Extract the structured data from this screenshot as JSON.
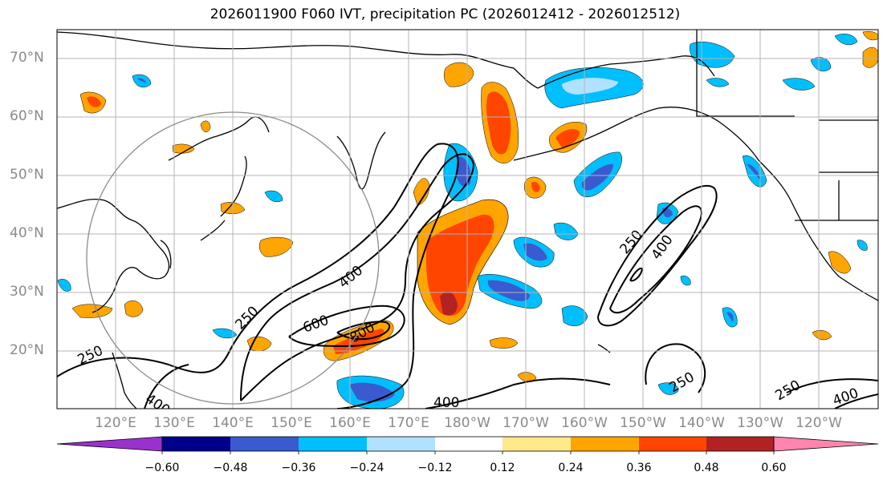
{
  "title": "2026011900 F060 IVT, precipitation PC (2026012412 - 2026012512)",
  "lat_labels": [
    "70°N",
    "60°N",
    "50°N",
    "40°N",
    "30°N",
    "20°N"
  ],
  "lon_labels": [
    "120°E",
    "130°E",
    "140°E",
    "150°E",
    "160°E",
    "170°E",
    "180°W",
    "170°W",
    "160°W",
    "150°W",
    "140°W",
    "130°W",
    "120°W"
  ],
  "contour_labels": [
    "250",
    "400",
    "600",
    "800",
    "250",
    "400",
    "250",
    "400",
    "250",
    "400",
    "250",
    "400"
  ],
  "colorbar": {
    "tick_labels": [
      "−0.60",
      "−0.48",
      "−0.36",
      "−0.24",
      "−0.12",
      "0.12",
      "0.24",
      "0.36",
      "0.48",
      "0.60"
    ],
    "colors": [
      "#9932cc",
      "#00008b",
      "#3a5bcf",
      "#00bfff",
      "#b0e2ff",
      "#ffffff",
      "#ffe98a",
      "#ffa500",
      "#ff4500",
      "#b22222",
      "#ff85b0"
    ]
  },
  "palette": {
    "neg_strong": "#3a5bcf",
    "neg": "#00bfff",
    "neg_light": "#b0e2ff",
    "pos_light": "#ffe98a",
    "pos": "#ffa500",
    "pos_strong": "#ff4500",
    "pos_max": "#b22222"
  }
}
